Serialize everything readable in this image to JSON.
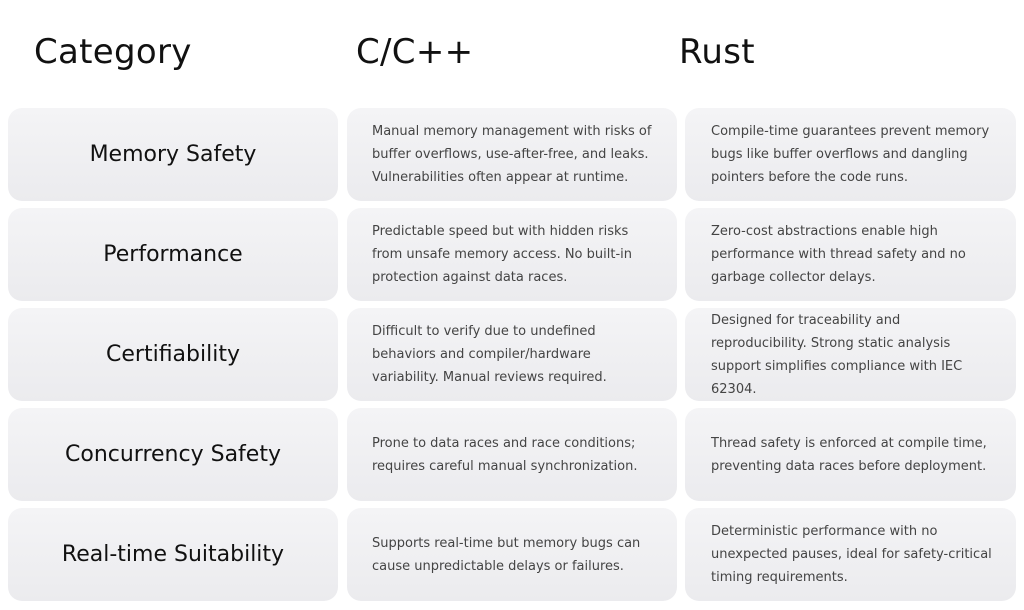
{
  "header": {
    "category": "Category",
    "cpp": "C/C++",
    "rust": "Rust"
  },
  "rows": [
    {
      "category": "Memory Safety",
      "cpp": "Manual memory management with risks of buffer overflows, use-after-free, and leaks. Vulnerabilities often appear at runtime.",
      "rust": "Compile-time guarantees prevent memory bugs like buffer overflows and dangling pointers before the code runs."
    },
    {
      "category": "Performance",
      "cpp": "Predictable speed but with hidden risks from unsafe memory access. No built-in protection against data races.",
      "rust": "Zero-cost abstractions enable high performance with thread safety and no garbage collector delays."
    },
    {
      "category": "Certifiability",
      "cpp": "Difficult to verify due to undefined behaviors and compiler/hardware variability. Manual reviews required.",
      "rust": "Designed for traceability and reproducibility. Strong static analysis support simplifies compliance with IEC 62304."
    },
    {
      "category": "Concurrency Safety",
      "cpp": "Prone to data races and race conditions; requires careful manual synchronization.",
      "rust": "Thread safety is enforced at compile time, preventing data races before deployment."
    },
    {
      "category": "Real-time Suitability",
      "cpp": "Supports real-time but memory bugs can cause unpredictable delays or failures.",
      "rust": "Deterministic performance with no unexpected pauses, ideal for safety-critical timing requirements."
    }
  ]
}
